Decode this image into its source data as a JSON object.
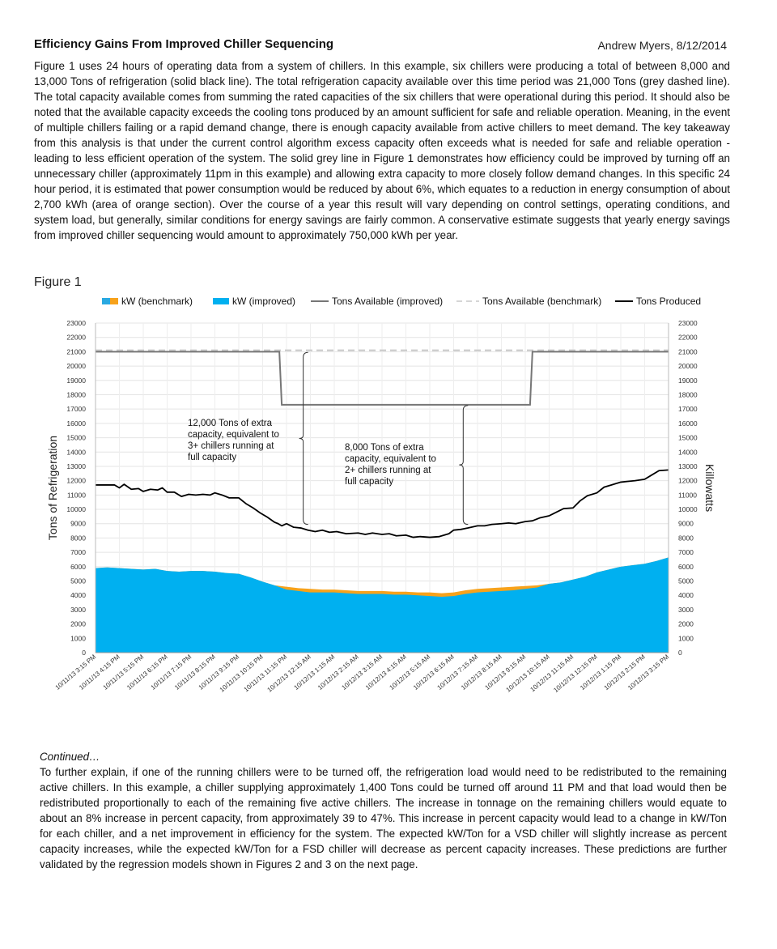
{
  "header": {
    "title": "Efficiency Gains From Improved Chiller Sequencing",
    "author_date": "Andrew Myers, 8/12/2014"
  },
  "intro_paragraph": "Figure 1 uses 24 hours of operating data from a system of chillers.  In this example, six chillers were producing a total of between 8,000 and 13,000 Tons of refrigeration (solid black line).  The total refrigeration capacity available over this time period was 21,000 Tons (grey dashed line).  The total capacity available comes from summing the rated capacities of the six chillers that were operational during this period.  It should also be noted that the available capacity exceeds the cooling tons produced by an amount sufficient for safe and reliable operation.  Meaning, in the event of multiple chillers failing or a rapid demand change, there is enough capacity available from active chillers to meet demand.  The key takeaway from this analysis is that under the current control algorithm excess capacity often exceeds what is needed for safe and reliable operation - leading to less efficient operation of the system.  The solid grey line in Figure 1 demonstrates how efficiency could be improved by turning off an unnecessary chiller (approximately 11pm in this example) and allowing extra capacity to more closely follow demand changes.  In this specific 24 hour period, it is estimated that power consumption would be reduced by about 6%, which equates to a reduction in energy consumption of about 2,700 kWh (area of orange section).  Over the course of a year this result will vary depending on control settings, operating conditions, and system load, but generally, similar conditions for energy savings are fairly common.   A conservative estimate suggests that yearly energy savings from improved chiller sequencing would amount to approximately 750,000 kWh per year.",
  "figure_label": "Figure 1",
  "continued": {
    "heading": "Continued…",
    "paragraph": "To further explain, if one of the running chillers were to be turned off, the refrigeration load would need to be redistributed to the remaining active chillers.  In this example, a chiller supplying approximately 1,400 Tons could be turned off around 11 PM and that load would then be redistributed proportionally to each of the remaining five active chillers.  The increase in tonnage on the remaining chillers would equate to about an 8% increase in percent capacity, from approximately 39 to 47%.  This increase in percent capacity would lead to a change in kW/Ton for each chiller, and a net improvement in efficiency for the system.  The expected kW/Ton for a VSD chiller will slightly increase as percent capacity increases, while the expected kW/Ton for a FSD chiller will decrease as percent capacity increases.  These predictions are further validated by the regression models shown in Figures 2 and 3 on the next page."
  },
  "chart_data": {
    "type": "area",
    "title": "",
    "ylabel_left": "Tons of Refrigeration",
    "ylabel_right": "Killowatts",
    "ylim_left": [
      0,
      23000
    ],
    "ylim_right": [
      0,
      23000
    ],
    "y_ticks": [
      0,
      1000,
      2000,
      3000,
      4000,
      5000,
      6000,
      7000,
      8000,
      9000,
      10000,
      11000,
      12000,
      13000,
      14000,
      15000,
      16000,
      17000,
      18000,
      19000,
      20000,
      21000,
      22000,
      23000
    ],
    "x_tick_labels": [
      "10/11/13 3:15 PM",
      "10/11/13 4:15 PM",
      "10/11/13 5:15 PM",
      "10/11/13 6:15 PM",
      "10/11/13 7:15 PM",
      "10/11/13 8:15 PM",
      "10/11/13 9:15 PM",
      "10/11/13 10:15 PM",
      "10/11/13 11:15 PM",
      "10/12/13 12:15 AM",
      "10/12/13 1:15 AM",
      "10/12/13 2:15 AM",
      "10/12/13 3:15 AM",
      "10/12/13 4:15 AM",
      "10/12/13 5:15 AM",
      "10/12/13 6:15 AM",
      "10/12/13 7:15 AM",
      "10/12/13 8:15 AM",
      "10/12/13 9:15 AM",
      "10/12/13 10:15 AM",
      "10/12/13 11:15 AM",
      "10/12/13 12:15 PM",
      "10/12/13 1:15 PM",
      "10/12/13 2:15 PM",
      "10/12/13 3:15 PM"
    ],
    "x_hours": [
      0,
      1,
      2,
      3,
      4,
      5,
      6,
      7,
      8,
      9,
      10,
      11,
      12,
      13,
      14,
      15,
      16,
      17,
      18,
      19,
      20,
      21,
      22,
      23,
      24
    ],
    "legend": [
      {
        "name": "kW (benchmark)",
        "colors": [
          "#29a9e1",
          "#f7a21b"
        ],
        "style": "area-pair"
      },
      {
        "name": "kW (improved)",
        "colors": [
          "#00b0f0"
        ],
        "style": "area"
      },
      {
        "name": "Tons Available (improved)",
        "colors": [
          "#767676"
        ],
        "style": "line"
      },
      {
        "name": "Tons Available (benchmark)",
        "colors": [
          "#c8c8c8"
        ],
        "style": "dash"
      },
      {
        "name": "Tons Produced",
        "colors": [
          "#000000"
        ],
        "style": "line"
      }
    ],
    "legend_position": "top",
    "grid": true,
    "colors": {
      "kw_improved": "#00b0f0",
      "kw_savings": "#f7a21b",
      "tons_produced": "#000000",
      "available_improved": "#767676",
      "available_benchmark": "#c8c8c8"
    },
    "series": [
      {
        "name": "Tons Produced",
        "x": [
          0,
          0.4,
          0.8,
          1.0,
          1.2,
          1.5,
          1.8,
          2.0,
          2.3,
          2.6,
          2.8,
          3.0,
          3.3,
          3.6,
          3.9,
          4.2,
          4.5,
          4.8,
          5.0,
          5.3,
          5.6,
          6.0,
          6.3,
          6.6,
          6.9,
          7.2,
          7.5,
          7.65,
          7.8,
          8.0,
          8.3,
          8.6,
          8.9,
          9.2,
          9.5,
          9.8,
          10.1,
          10.5,
          11.0,
          11.3,
          11.6,
          12.0,
          12.3,
          12.6,
          13.0,
          13.3,
          13.6,
          14.0,
          14.4,
          14.8,
          15.0,
          15.3,
          15.6,
          16.0,
          16.3,
          16.6,
          17.0,
          17.3,
          17.6,
          18.0,
          18.3,
          18.6,
          19.0,
          19.3,
          19.6,
          20.0,
          20.3,
          20.6,
          21.0,
          21.3,
          21.6,
          22.0,
          22.3,
          22.6,
          23.0,
          23.3,
          23.6,
          24.0
        ],
        "y": [
          11700,
          11700,
          11700,
          11500,
          11750,
          11400,
          11450,
          11250,
          11400,
          11350,
          11500,
          11200,
          11200,
          10900,
          11050,
          11000,
          11050,
          11000,
          11150,
          11000,
          10800,
          10800,
          10400,
          10100,
          9750,
          9450,
          9100,
          9000,
          8850,
          9000,
          8750,
          8700,
          8550,
          8450,
          8550,
          8400,
          8450,
          8300,
          8350,
          8250,
          8350,
          8250,
          8300,
          8150,
          8200,
          8050,
          8100,
          8050,
          8100,
          8300,
          8550,
          8600,
          8700,
          8850,
          8850,
          8950,
          9000,
          9050,
          9000,
          9150,
          9200,
          9400,
          9550,
          9800,
          10050,
          10100,
          10600,
          10950,
          11150,
          11550,
          11700,
          11900,
          11950,
          12000,
          12100,
          12400,
          12700,
          12750
        ]
      },
      {
        "name": "Tons Available (improved)",
        "x": [
          0,
          7.7,
          7.8,
          18.2,
          18.3,
          24
        ],
        "y": [
          21000,
          21000,
          17300,
          17300,
          21000,
          21000
        ]
      },
      {
        "name": "Tons Available (benchmark)",
        "x": [
          0,
          24
        ],
        "y": [
          21100,
          21100
        ]
      },
      {
        "name": "kW (benchmark)",
        "x": [
          0,
          0.5,
          1.0,
          1.5,
          2.0,
          2.5,
          3.0,
          3.5,
          4.0,
          4.5,
          5.0,
          5.5,
          6.0,
          6.5,
          7.0,
          7.5,
          8.0,
          8.5,
          9.0,
          9.5,
          10.0,
          10.5,
          11.0,
          11.5,
          12.0,
          12.5,
          13.0,
          13.5,
          14.0,
          14.5,
          15.0,
          15.5,
          16.0,
          16.5,
          17.0,
          17.5,
          18.0,
          18.5,
          19.0,
          19.5,
          20.0,
          20.5,
          21.0,
          21.5,
          22.0,
          22.5,
          23.0,
          23.5,
          24.0
        ],
        "y": [
          5900,
          5950,
          5900,
          5850,
          5800,
          5850,
          5700,
          5650,
          5700,
          5700,
          5650,
          5550,
          5500,
          5250,
          4950,
          4700,
          4600,
          4500,
          4450,
          4400,
          4400,
          4350,
          4300,
          4300,
          4300,
          4250,
          4250,
          4200,
          4200,
          4150,
          4200,
          4350,
          4450,
          4500,
          4550,
          4600,
          4650,
          4700,
          4800,
          4900,
          5100,
          5300,
          5600,
          5800,
          6000,
          6100,
          6200,
          6400,
          6650
        ]
      },
      {
        "name": "kW (improved)",
        "x": [
          0,
          0.5,
          1.0,
          1.5,
          2.0,
          2.5,
          3.0,
          3.5,
          4.0,
          4.5,
          5.0,
          5.5,
          6.0,
          6.5,
          7.0,
          7.5,
          8.0,
          8.5,
          9.0,
          9.5,
          10.0,
          10.5,
          11.0,
          11.5,
          12.0,
          12.5,
          13.0,
          13.5,
          14.0,
          14.5,
          15.0,
          15.5,
          16.0,
          16.5,
          17.0,
          17.5,
          18.0,
          18.5,
          19.0,
          19.5,
          20.0,
          20.5,
          21.0,
          21.5,
          22.0,
          22.5,
          23.0,
          23.5,
          24.0
        ],
        "y": [
          5900,
          5950,
          5900,
          5850,
          5800,
          5850,
          5700,
          5650,
          5700,
          5700,
          5650,
          5550,
          5500,
          5250,
          4950,
          4700,
          4400,
          4300,
          4200,
          4200,
          4200,
          4150,
          4100,
          4100,
          4100,
          4050,
          4050,
          4000,
          3950,
          3900,
          3950,
          4100,
          4200,
          4250,
          4300,
          4350,
          4450,
          4550,
          4800,
          4900,
          5100,
          5300,
          5600,
          5800,
          6000,
          6100,
          6200,
          6400,
          6650
        ]
      }
    ],
    "annotations": [
      {
        "text": "12,000 Tons of extra capacity, equivalent to 3+ chillers running at full capacity",
        "lines": [
          "12,000 Tons of extra",
          "capacity, equivalent to",
          "3+ chillers running at",
          "full capacity"
        ],
        "brace_x_hour": 8.7,
        "brace_y": [
          8950,
          20950
        ]
      },
      {
        "text": "8,000 Tons of extra capacity, equivalent to 2+ chillers running at full capacity",
        "lines": [
          "8,000 Tons of extra",
          "capacity, equivalent to",
          "2+ chillers running at",
          "full capacity"
        ],
        "brace_x_hour": 15.4,
        "brace_y": [
          8950,
          17250
        ]
      }
    ]
  }
}
